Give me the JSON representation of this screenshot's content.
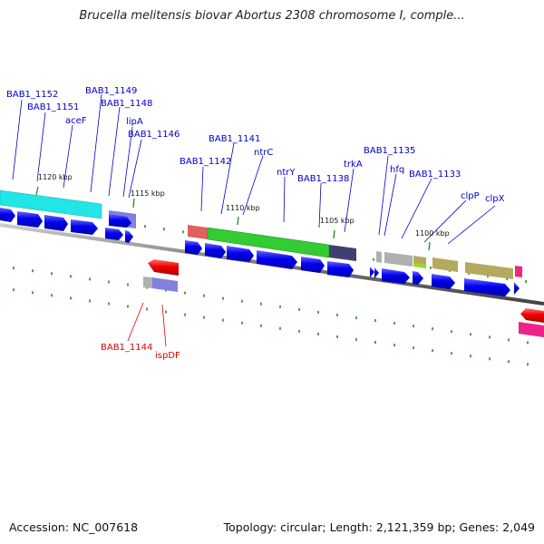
{
  "title": "Brucella melitensis biovar Abortus 2308 chromosome I, comple...",
  "footer": {
    "accession": "Accession: NC_007618",
    "summary": "Topology: circular; Length: 2,121,359 bp; Genes: 2,049"
  },
  "ticks": [
    "1120 kbp",
    "1115 kbp",
    "1110 kbp",
    "1105 kbp",
    "1100 kbp"
  ],
  "labels_top": [
    "BAB1_1152",
    "BAB1_1151",
    "aceF",
    "BAB1_1149",
    "BAB1_1148",
    "lipA",
    "BAB1_1146",
    "BAB1_1141",
    "BAB1_1142",
    "ntrC",
    "ntrY",
    "BAB1_1138",
    "trkA",
    "BAB1_1135",
    "hfq",
    "BAB1_1133",
    "clpP",
    "clpX"
  ],
  "labels_bottom": [
    "BAB1_1144",
    "ispDF"
  ],
  "colors": {
    "forward_gene": "#0000ee",
    "reverse_gene": "#ee0000",
    "label_forward": "#0000cc",
    "label_reverse": "#dd0000",
    "cog_cyan": "#22e5e5",
    "cog_green": "#33cc33",
    "cog_olive": "#b5a95f",
    "cog_lavender": "#8080dd",
    "cog_navy": "#404070",
    "cog_salmon": "#e06060",
    "cog_gray": "#b0b0b0",
    "cog_lime": "#99dd22",
    "cog_magenta": "#ee2288",
    "backbone": "#777777",
    "grid_dot": "#228b22"
  }
}
